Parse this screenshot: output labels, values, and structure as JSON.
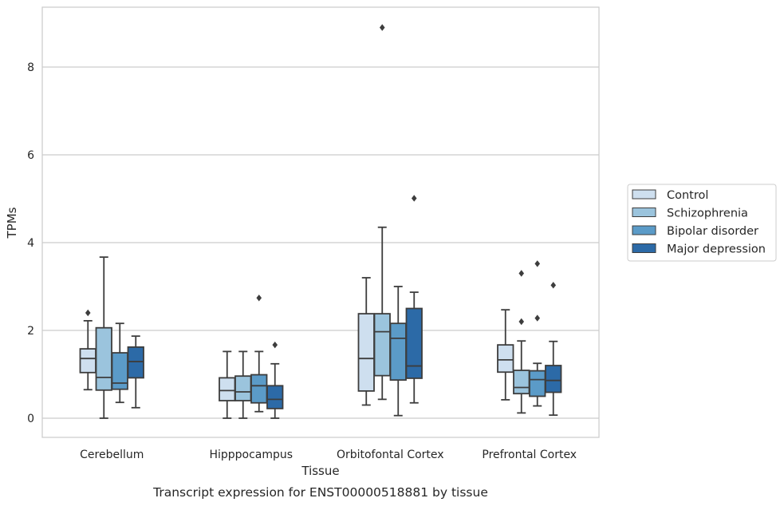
{
  "chart_data": {
    "type": "box",
    "title": "",
    "caption": "Transcript expression for ENST00000518881 by tissue",
    "xlabel": "Tissue",
    "ylabel": "TPMs",
    "ylim": [
      -0.4,
      9.3
    ],
    "yticks": [
      0,
      2,
      4,
      6,
      8
    ],
    "grid": true,
    "legend_position": "right",
    "categories": [
      "Cerebellum",
      "Hipppocampus",
      "Orbitofontal Cortex",
      "Prefrontal Cortex"
    ],
    "series": [
      {
        "name": "Control",
        "color": "#cedfef",
        "boxes": [
          {
            "whisker_low": 0.65,
            "q1": 1.04,
            "median": 1.36,
            "q3": 1.58,
            "whisker_high": 2.22,
            "outliers": [
              2.4
            ]
          },
          {
            "whisker_low": 0.0,
            "q1": 0.4,
            "median": 0.63,
            "q3": 0.92,
            "whisker_high": 1.52,
            "outliers": []
          },
          {
            "whisker_low": 0.3,
            "q1": 0.62,
            "median": 1.36,
            "q3": 2.38,
            "whisker_high": 3.2,
            "outliers": []
          },
          {
            "whisker_low": 0.42,
            "q1": 1.05,
            "median": 1.33,
            "q3": 1.67,
            "whisker_high": 2.47,
            "outliers": []
          }
        ]
      },
      {
        "name": "Schizophrenia",
        "color": "#9bc4dd",
        "boxes": [
          {
            "whisker_low": 0.0,
            "q1": 0.64,
            "median": 0.93,
            "q3": 2.06,
            "whisker_high": 3.67,
            "outliers": []
          },
          {
            "whisker_low": 0.0,
            "q1": 0.4,
            "median": 0.6,
            "q3": 0.96,
            "whisker_high": 1.52,
            "outliers": []
          },
          {
            "whisker_low": 0.43,
            "q1": 0.97,
            "median": 1.97,
            "q3": 2.38,
            "whisker_high": 4.35,
            "outliers": [
              8.9
            ]
          },
          {
            "whisker_low": 0.12,
            "q1": 0.56,
            "median": 0.7,
            "q3": 1.09,
            "whisker_high": 1.76,
            "outliers": [
              2.2,
              3.3
            ]
          }
        ]
      },
      {
        "name": "Bipolar disorder",
        "color": "#5b9bc8",
        "boxes": [
          {
            "whisker_low": 0.36,
            "q1": 0.66,
            "median": 0.8,
            "q3": 1.49,
            "whisker_high": 2.16,
            "outliers": []
          },
          {
            "whisker_low": 0.15,
            "q1": 0.35,
            "median": 0.74,
            "q3": 0.99,
            "whisker_high": 1.52,
            "outliers": [
              2.74
            ]
          },
          {
            "whisker_low": 0.06,
            "q1": 0.87,
            "median": 1.82,
            "q3": 2.16,
            "whisker_high": 3.0,
            "outliers": []
          },
          {
            "whisker_low": 0.28,
            "q1": 0.5,
            "median": 0.88,
            "q3": 1.08,
            "whisker_high": 1.25,
            "outliers": [
              2.28,
              3.52
            ]
          }
        ]
      },
      {
        "name": "Major depression",
        "color": "#2c6aa7",
        "boxes": [
          {
            "whisker_low": 0.24,
            "q1": 0.92,
            "median": 1.29,
            "q3": 1.62,
            "whisker_high": 1.87,
            "outliers": []
          },
          {
            "whisker_low": 0.0,
            "q1": 0.22,
            "median": 0.43,
            "q3": 0.74,
            "whisker_high": 1.24,
            "outliers": [
              1.67
            ]
          },
          {
            "whisker_low": 0.35,
            "q1": 0.91,
            "median": 1.19,
            "q3": 2.5,
            "whisker_high": 2.87,
            "outliers": [
              5.01
            ]
          },
          {
            "whisker_low": 0.07,
            "q1": 0.59,
            "median": 0.86,
            "q3": 1.2,
            "whisker_high": 1.75,
            "outliers": [
              3.03
            ]
          }
        ]
      }
    ]
  }
}
